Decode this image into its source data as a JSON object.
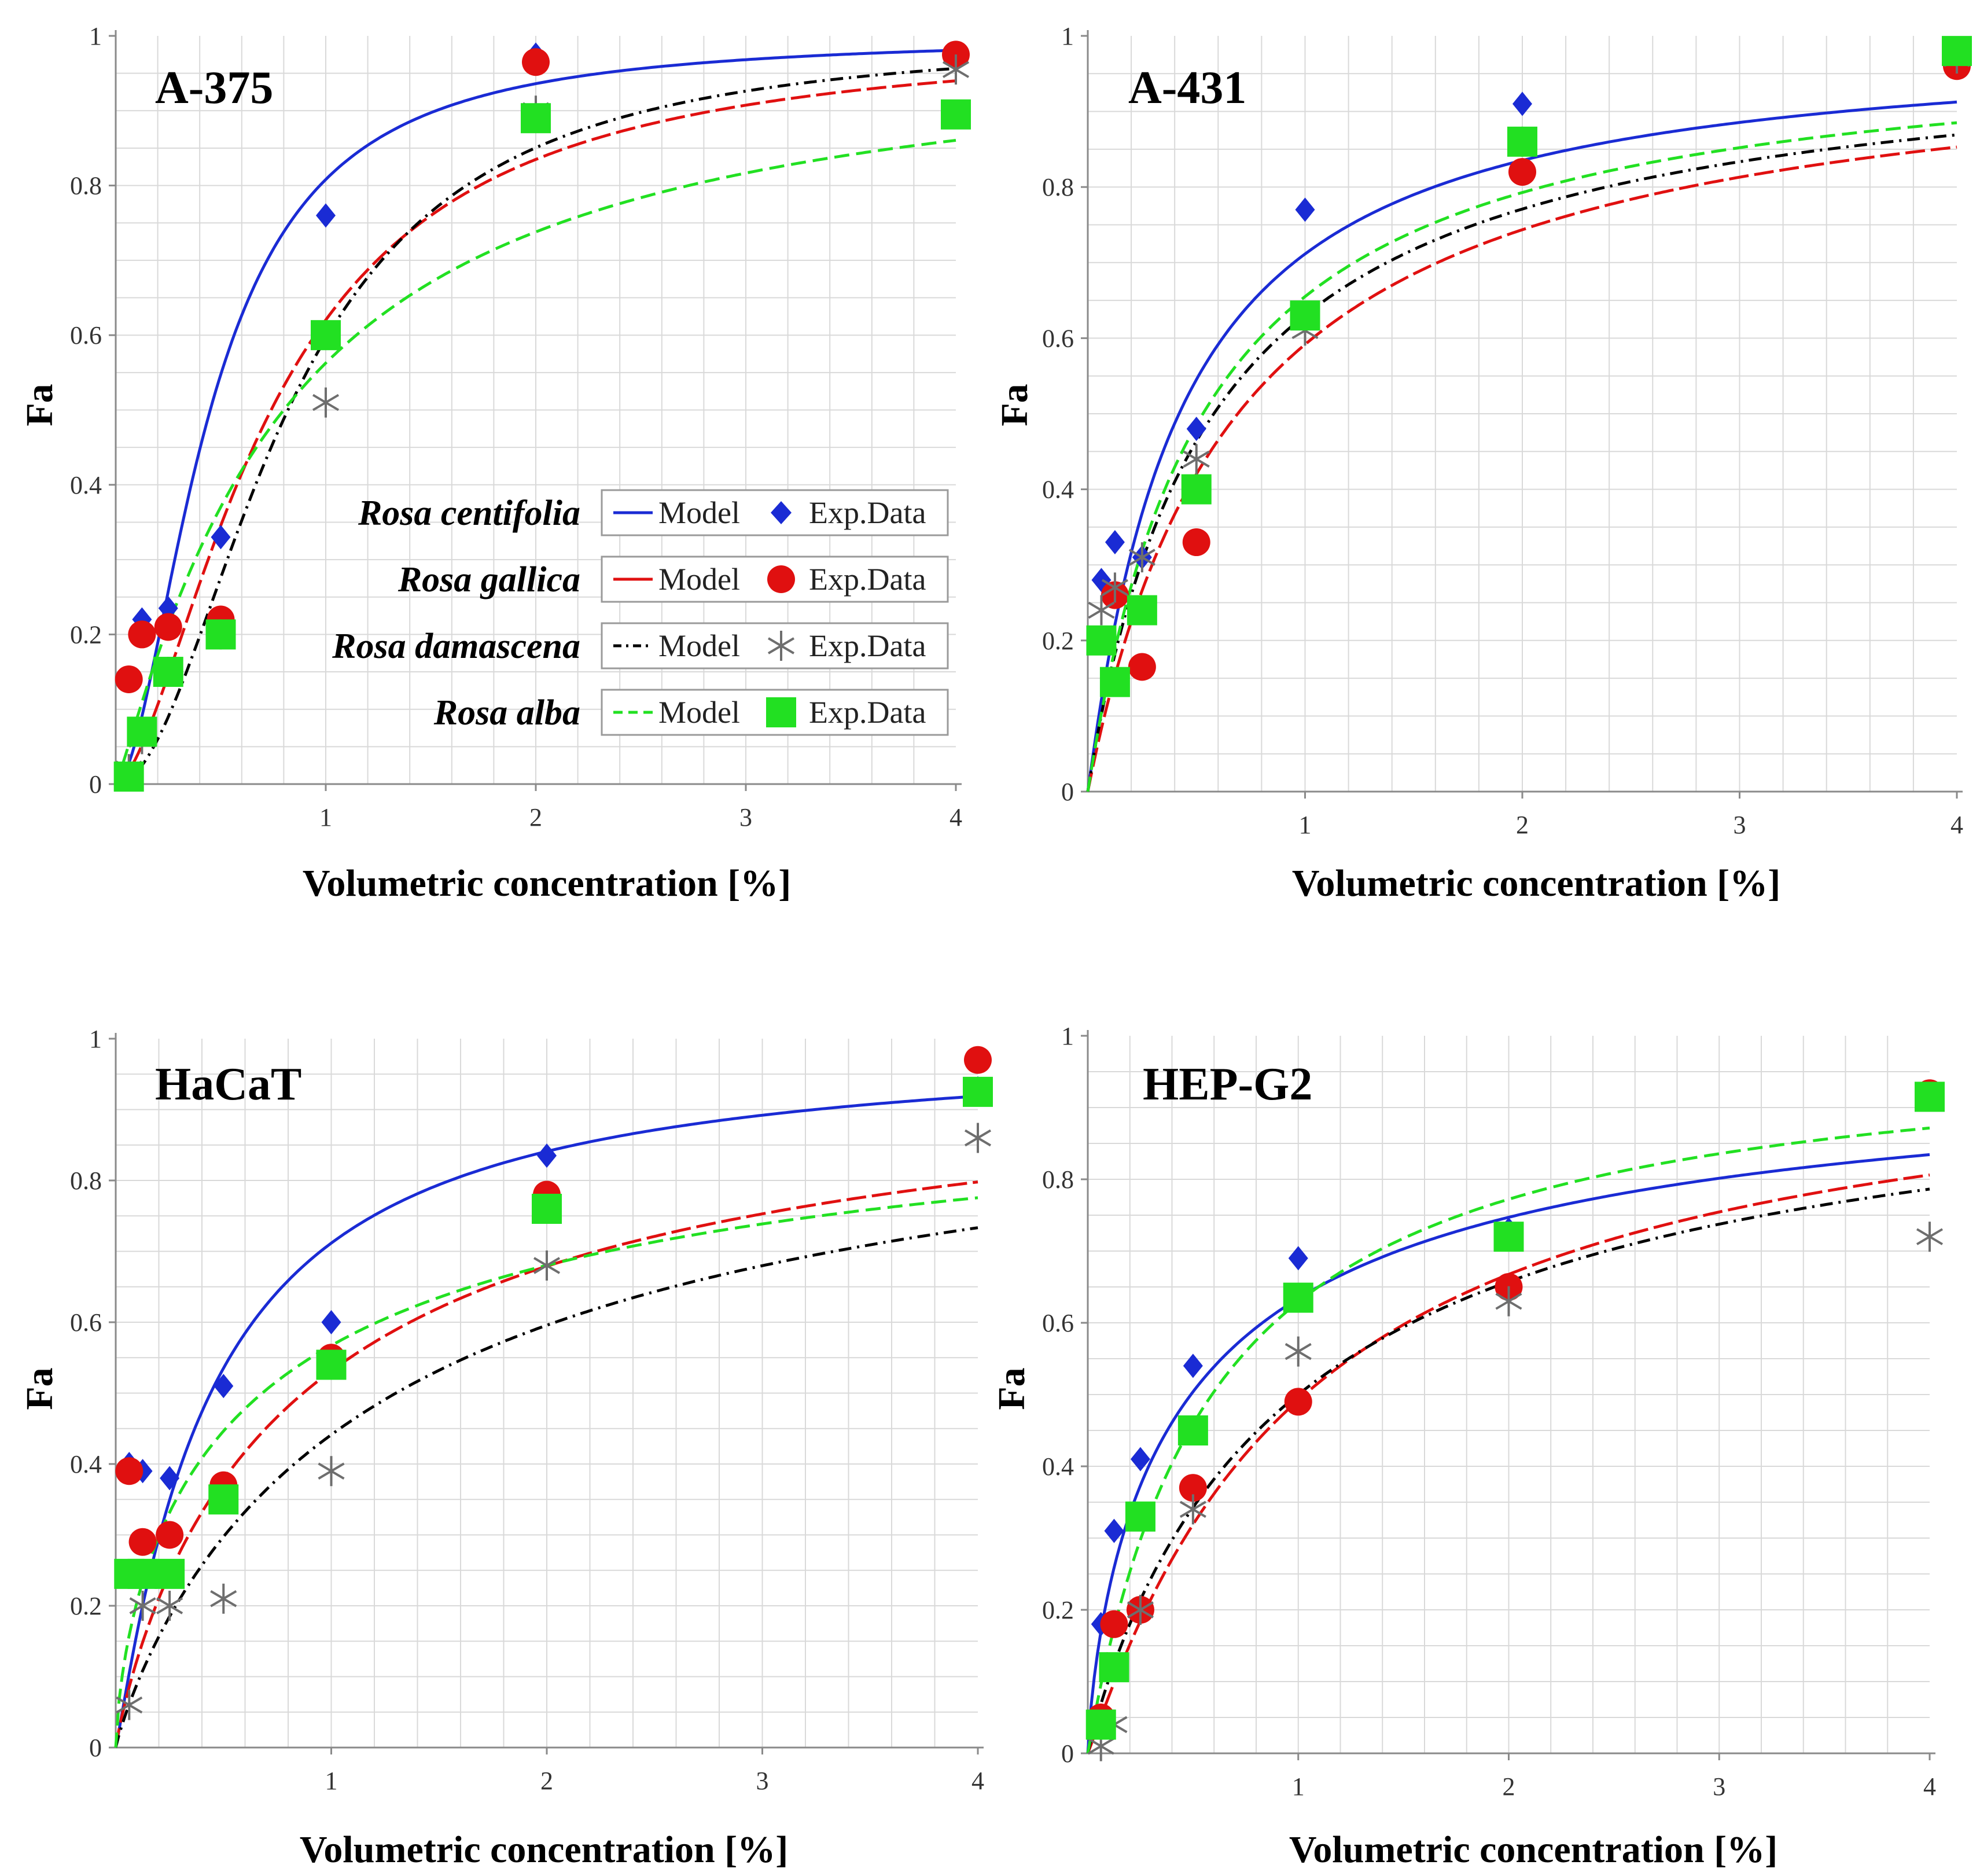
{
  "series_styles": [
    {
      "name": "Rosa centifolia",
      "color": "#1a2bd4",
      "dash": "",
      "marker": "diamond"
    },
    {
      "name": "Rosa gallica",
      "color": "#e01010",
      "dash": "34,10",
      "marker": "circle"
    },
    {
      "name": "Rosa damascena",
      "color": "#000000",
      "dash": "22,10,4,10",
      "marker": "star"
    },
    {
      "name": "Rosa alba",
      "color": "#22e022",
      "dash": "26,12",
      "marker": "square"
    }
  ],
  "star_color": "#6e6e6e",
  "legend": {
    "items": [
      {
        "species": "Rosa centifolia",
        "model_label": "Model",
        "data_label": "Exp.Data"
      },
      {
        "species": "Rosa gallica",
        "model_label": "Model",
        "data_label": "Exp.Data"
      },
      {
        "species": "Rosa damascena",
        "model_label": "Model",
        "data_label": "Exp.Data"
      },
      {
        "species": "Rosa alba",
        "model_label": "Model",
        "data_label": "Exp.Data"
      }
    ]
  },
  "chart_data": [
    {
      "type": "scatter",
      "title": "A-375",
      "xlabel": "Volumetric concentration [%]",
      "ylabel": "Fa",
      "xlim": [
        0,
        4
      ],
      "ylim": [
        0,
        1
      ],
      "xticks": [
        1,
        2,
        3,
        4
      ],
      "yticks": [
        0,
        0.2,
        0.4,
        0.6,
        0.8,
        1
      ],
      "ytick_labels": [
        "0",
        "0.2",
        "0.4",
        "0.6",
        "0.8",
        "1"
      ],
      "series": [
        {
          "name": "Rosa centifolia",
          "model": {
            "Dm": 0.45,
            "m": 1.8
          },
          "x": [
            0.0625,
            0.125,
            0.25,
            0.5,
            1,
            2,
            4
          ],
          "y": [
            0.14,
            0.22,
            0.235,
            0.33,
            0.76,
            0.975,
            0.975
          ]
        },
        {
          "name": "Rosa gallica",
          "model": {
            "Dm": 0.74,
            "m": 1.63
          },
          "x": [
            0.0625,
            0.125,
            0.25,
            0.5,
            1,
            2,
            4
          ],
          "y": [
            0.14,
            0.2,
            0.21,
            0.22,
            0.6,
            0.965,
            0.975
          ]
        },
        {
          "name": "Rosa damascena",
          "model": {
            "Dm": 0.82,
            "m": 1.95
          },
          "x": [
            0.0625,
            0.125,
            0.25,
            0.5,
            1,
            2,
            4
          ],
          "y": [
            0.02,
            0.06,
            0.15,
            0.2,
            0.51,
            0.9,
            0.955
          ]
        },
        {
          "name": "Rosa alba",
          "model": {
            "Dm": 0.8,
            "m": 1.13
          },
          "x": [
            0.0625,
            0.125,
            0.25,
            0.5,
            1,
            2,
            4
          ],
          "y": [
            0.01,
            0.07,
            0.15,
            0.2,
            0.6,
            0.89,
            0.895
          ]
        }
      ]
    },
    {
      "type": "scatter",
      "title": "A-431",
      "xlabel": "Volumetric concentration [%]",
      "ylabel": "Fa",
      "xlim": [
        0,
        4
      ],
      "ylim": [
        0,
        1
      ],
      "xticks": [
        1,
        2,
        3,
        4
      ],
      "yticks": [
        0,
        0.2,
        0.4,
        0.6,
        0.8,
        1
      ],
      "ytick_labels": [
        "0",
        "0.2",
        "0.4",
        "0.6",
        "0.8",
        "1"
      ],
      "series": [
        {
          "name": "Rosa centifolia",
          "model": {
            "Dm": 0.42,
            "m": 1.04
          },
          "x": [
            0.0625,
            0.125,
            0.25,
            0.5,
            1,
            2,
            4
          ],
          "y": [
            0.28,
            0.33,
            0.31,
            0.48,
            0.77,
            0.91,
            0.98
          ]
        },
        {
          "name": "Rosa gallica",
          "model": {
            "Dm": 0.69,
            "m": 1.0
          },
          "x": [
            0.0625,
            0.125,
            0.25,
            0.5,
            1,
            2,
            4
          ],
          "y": [
            0.2,
            0.26,
            0.165,
            0.33,
            0.63,
            0.82,
            0.96
          ]
        },
        {
          "name": "Rosa damascena",
          "model": {
            "Dm": 0.58,
            "m": 0.98
          },
          "x": [
            0.0625,
            0.125,
            0.25,
            0.5,
            1,
            2,
            4
          ],
          "y": [
            0.24,
            0.27,
            0.31,
            0.44,
            0.61,
            0.86,
            0.97
          ]
        },
        {
          "name": "Rosa alba",
          "model": {
            "Dm": 0.53,
            "m": 1.01
          },
          "x": [
            0.0625,
            0.125,
            0.25,
            0.5,
            1,
            2,
            4
          ],
          "y": [
            0.2,
            0.145,
            0.24,
            0.4,
            0.63,
            0.86,
            0.98
          ]
        }
      ]
    },
    {
      "type": "scatter",
      "title": "HaCaT",
      "xlabel": "Volumetric concentration [%]",
      "ylabel": "Fa",
      "xlim": [
        0,
        4
      ],
      "ylim": [
        0,
        1
      ],
      "xticks": [
        1,
        2,
        3,
        4
      ],
      "yticks": [
        0,
        0.2,
        0.4,
        0.6,
        0.8,
        1
      ],
      "ytick_labels": [
        "0",
        "0.2",
        "0.4",
        "0.6",
        "0.8",
        "1"
      ],
      "series": [
        {
          "name": "Rosa centifolia",
          "model": {
            "Dm": 0.44,
            "m": 1.1
          },
          "x": [
            0.0625,
            0.125,
            0.25,
            0.5,
            1,
            2,
            4
          ],
          "y": [
            0.4,
            0.39,
            0.38,
            0.51,
            0.6,
            0.835,
            0.93
          ]
        },
        {
          "name": "Rosa gallica",
          "model": {
            "Dm": 0.87,
            "m": 0.9
          },
          "x": [
            0.0625,
            0.125,
            0.25,
            0.5,
            1,
            2,
            4
          ],
          "y": [
            0.39,
            0.29,
            0.3,
            0.37,
            0.55,
            0.78,
            0.97
          ]
        },
        {
          "name": "Rosa damascena",
          "model": {
            "Dm": 1.3,
            "m": 0.9
          },
          "x": [
            0.0625,
            0.125,
            0.25,
            0.5,
            1,
            2,
            4
          ],
          "y": [
            0.06,
            0.2,
            0.2,
            0.21,
            0.39,
            0.68,
            0.86
          ]
        },
        {
          "name": "Rosa alba",
          "model": {
            "Dm": 0.68,
            "m": 0.7
          },
          "x": [
            0.0625,
            0.125,
            0.25,
            0.5,
            1,
            2,
            4
          ],
          "y": [
            0.245,
            0.245,
            0.245,
            0.35,
            0.54,
            0.76,
            0.925
          ]
        }
      ]
    },
    {
      "type": "scatter",
      "title": "HEP-G2",
      "xlabel": "Volumetric concentration [%]",
      "ylabel": "Fa",
      "xlim": [
        0,
        4
      ],
      "ylim": [
        0,
        1
      ],
      "xticks": [
        1,
        2,
        3,
        4
      ],
      "yticks": [
        0,
        0.2,
        0.4,
        0.6,
        0.8,
        1
      ],
      "ytick_labels": [
        "0",
        "0.2",
        "0.4",
        "0.6",
        "0.8",
        "1"
      ],
      "series": [
        {
          "name": "Rosa centifolia",
          "model": {
            "Dm": 0.49,
            "m": 0.77
          },
          "x": [
            0.0625,
            0.125,
            0.25,
            0.5,
            1,
            2,
            4
          ],
          "y": [
            0.18,
            0.31,
            0.41,
            0.54,
            0.69,
            0.73,
            0.92
          ]
        },
        {
          "name": "Rosa gallica",
          "model": {
            "Dm": 1.03,
            "m": 1.05
          },
          "x": [
            0.0625,
            0.125,
            0.25,
            0.5,
            1,
            2,
            4
          ],
          "y": [
            0.05,
            0.18,
            0.2,
            0.37,
            0.49,
            0.65,
            0.92
          ]
        },
        {
          "name": "Rosa damascena",
          "model": {
            "Dm": 1.0,
            "m": 0.94
          },
          "x": [
            0.0625,
            0.125,
            0.25,
            0.5,
            1,
            2,
            4
          ],
          "y": [
            0.01,
            0.04,
            0.2,
            0.34,
            0.56,
            0.63,
            0.72
          ]
        },
        {
          "name": "Rosa alba",
          "model": {
            "Dm": 0.59,
            "m": 1.0
          },
          "x": [
            0.0625,
            0.125,
            0.25,
            0.5,
            1,
            2,
            4
          ],
          "y": [
            0.04,
            0.12,
            0.33,
            0.45,
            0.635,
            0.72,
            0.915
          ]
        }
      ]
    }
  ]
}
